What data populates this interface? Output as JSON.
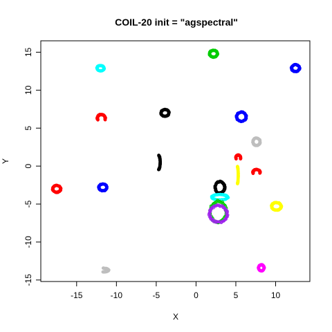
{
  "chart_data": {
    "type": "scatter",
    "title": "COIL-20 init = \"agspectral\"",
    "xlabel": "X",
    "ylabel": "Y",
    "xlim": [
      -19.5,
      14.3
    ],
    "ylim": [
      -15.2,
      16.5
    ],
    "xticks": [
      -15,
      -10,
      -5,
      0,
      5,
      10
    ],
    "yticks": [
      -15,
      -10,
      -5,
      0,
      5,
      10,
      15
    ],
    "grid": false,
    "legend": "none",
    "clusters": [
      {
        "color": "#00cc00",
        "shape": "ring",
        "cx": 2.2,
        "cy": 14.8,
        "rx": 0.5,
        "ry": 0.45
      },
      {
        "color": "#0000ff",
        "shape": "ring",
        "cx": 12.5,
        "cy": 12.9,
        "rx": 0.5,
        "ry": 0.45
      },
      {
        "color": "#00ffff",
        "shape": "ring",
        "cx": -12.0,
        "cy": 12.9,
        "rx": 0.45,
        "ry": 0.35
      },
      {
        "color": "#000000",
        "shape": "ring",
        "cx": -3.9,
        "cy": 7.0,
        "rx": 0.5,
        "ry": 0.45
      },
      {
        "color": "#0000ff",
        "shape": "ring",
        "cx": 5.7,
        "cy": 6.5,
        "rx": 0.6,
        "ry": 0.6
      },
      {
        "color": "#ff0000",
        "shape": "hook",
        "cx": -11.9,
        "cy": 6.3,
        "rx": 0.5,
        "ry": 0.5
      },
      {
        "color": "#bebebe",
        "shape": "ring",
        "cx": 7.6,
        "cy": 3.2,
        "rx": 0.45,
        "ry": 0.5
      },
      {
        "color": "#000000",
        "shape": "arc",
        "cx": -4.7,
        "cy": 0.5,
        "rx": 0.2,
        "ry": 0.9
      },
      {
        "color": "#ff0000",
        "shape": "hook",
        "cx": 5.3,
        "cy": 1.1,
        "rx": 0.3,
        "ry": 0.35
      },
      {
        "color": "#ffff00",
        "shape": "arc",
        "cx": 5.2,
        "cy": -1.2,
        "rx": 0.1,
        "ry": 1.1
      },
      {
        "color": "#ff0000",
        "shape": "hook",
        "cx": 7.6,
        "cy": -0.8,
        "rx": 0.45,
        "ry": 0.35
      },
      {
        "color": "#ff0000",
        "shape": "ring",
        "cx": -17.5,
        "cy": -3.0,
        "rx": 0.5,
        "ry": 0.45
      },
      {
        "color": "#0000ff",
        "shape": "ring",
        "cx": -11.7,
        "cy": -2.8,
        "rx": 0.5,
        "ry": 0.45
      },
      {
        "color": "#000000",
        "shape": "ring",
        "cx": 3.0,
        "cy": -2.8,
        "rx": 0.6,
        "ry": 0.75
      },
      {
        "color": "#00ffff",
        "shape": "ring",
        "cx": 3.0,
        "cy": -4.1,
        "rx": 1.0,
        "ry": 0.35
      },
      {
        "color": "#ffff00",
        "shape": "ring",
        "cx": 10.1,
        "cy": -5.3,
        "rx": 0.6,
        "ry": 0.5
      },
      {
        "color": "#00cc00",
        "shape": "ring",
        "cx": 2.8,
        "cy": -6.0,
        "rx": 1.0,
        "ry": 1.4
      },
      {
        "color": "#a020f0",
        "shape": "ring",
        "cx": 2.8,
        "cy": -6.3,
        "rx": 1.1,
        "ry": 1.1
      },
      {
        "color": "#bebebe",
        "shape": "arc",
        "cx": -11.7,
        "cy": -13.7,
        "rx": 0.7,
        "ry": 0.25
      },
      {
        "color": "#ff00ff",
        "shape": "ring",
        "cx": 8.2,
        "cy": -13.4,
        "rx": 0.35,
        "ry": 0.4
      }
    ]
  }
}
